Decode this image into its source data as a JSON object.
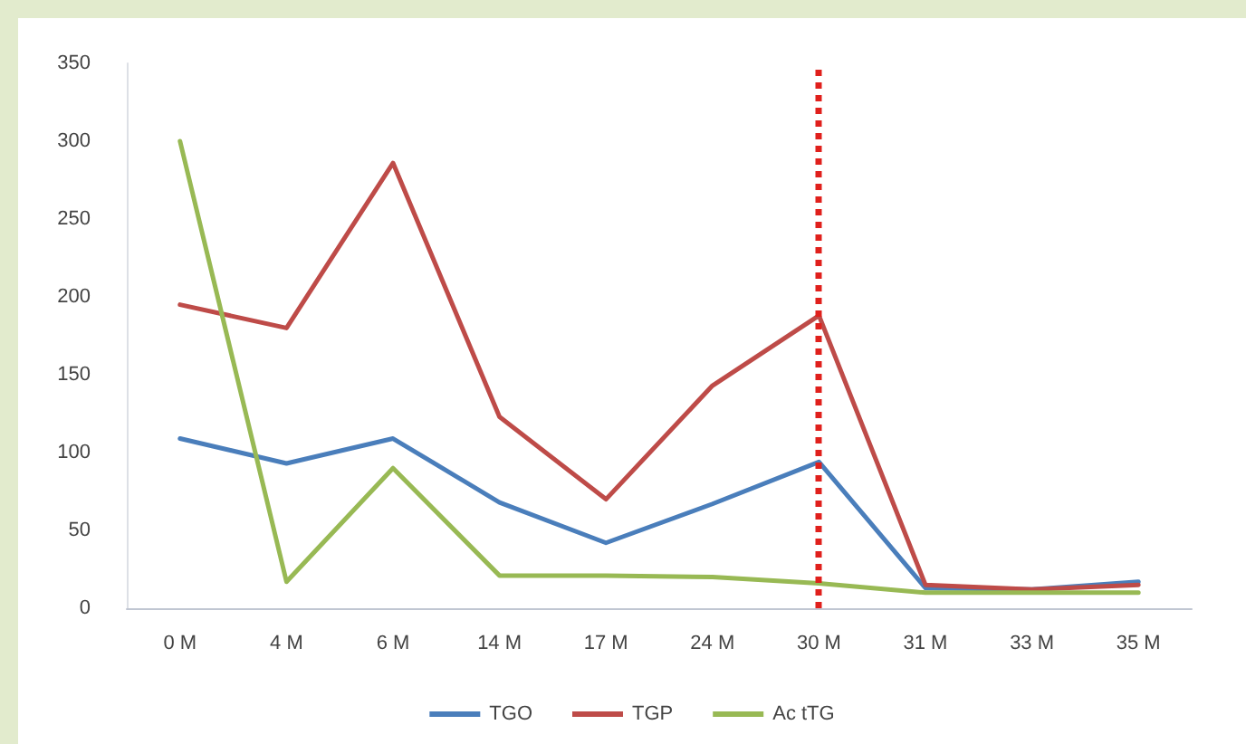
{
  "chart_data": {
    "type": "line",
    "categories": [
      "0 M",
      "4 M",
      "6 M",
      "14 M",
      "17 M",
      "24 M",
      "30 M",
      "31 M",
      "33 M",
      "35 M"
    ],
    "series": [
      {
        "name": "TGO",
        "color": "#4a7ebb",
        "values": [
          109,
          93,
          109,
          68,
          42,
          67,
          94,
          13,
          12,
          17
        ]
      },
      {
        "name": "TGP",
        "color": "#be4b48",
        "values": [
          195,
          180,
          286,
          123,
          70,
          143,
          188,
          15,
          12,
          15
        ]
      },
      {
        "name": "Ac tTG",
        "color": "#98b954",
        "values": [
          300,
          17,
          90,
          21,
          21,
          20,
          16,
          10,
          10,
          10
        ]
      }
    ],
    "ylim": [
      0,
      350
    ],
    "yticks": [
      0,
      50,
      100,
      150,
      200,
      250,
      300,
      350
    ],
    "grid": false,
    "legend": "bottom",
    "marker": "none",
    "line_style": "solid",
    "ref_lines": [
      {
        "axis": "x",
        "value": "30 M",
        "color": "#e0201c",
        "line_style": "dotted"
      }
    ]
  }
}
